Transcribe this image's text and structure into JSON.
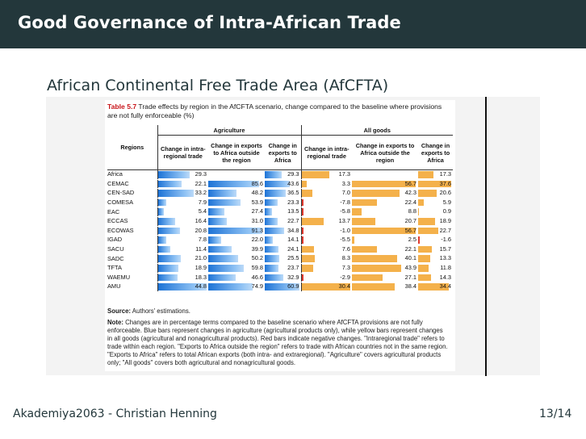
{
  "slide": {
    "title": "Good Governance of Intra-African Trade",
    "subtitle": "African Continental Free Trade Area (AfCFTA)",
    "footer_left": "Akademiya2063 - Christian Henning",
    "page_number": "13/14"
  },
  "table": {
    "caption": "Table 5.7 Trade effects by region in the AfCFTA scenario, change compared to the baseline where provisions are not fully enforceable (%)",
    "caption_prefix": "Table 5.7",
    "caption_text": "Trade effects by region in the AfCFTA scenario, change compared to the baseline where provisions are not fully enforceable (%)",
    "group_headers": [
      "Agriculture",
      "All goods"
    ],
    "regions_header": "Regions",
    "column_headers": [
      "Change in intra-regional trade",
      "Change in exports to Africa outside the region",
      "Change in exports to Africa",
      "Change in intra-regional trade",
      "Change in exports to Africa outside the region",
      "Change in exports to Africa"
    ],
    "rows": [
      {
        "region": "Africa",
        "values": [
          "29.3",
          "",
          "29.3",
          "17.3",
          "",
          "17.3"
        ]
      },
      {
        "region": "CEMAC",
        "values": [
          "22.1",
          "85.6",
          "43.6",
          "3.3",
          "56.7",
          "37.6"
        ]
      },
      {
        "region": "CEN-SAD",
        "values": [
          "33.2",
          "48.2",
          "36.5",
          "7.0",
          "42.3",
          "20.6"
        ]
      },
      {
        "region": "COMESA",
        "values": [
          "7.9",
          "53.9",
          "23.3",
          "-7.8",
          "22.4",
          "5.9"
        ]
      },
      {
        "region": "EAC",
        "values": [
          "5.4",
          "27.4",
          "13.5",
          "-5.8",
          "8.8",
          "0.9"
        ]
      },
      {
        "region": "ECCAS",
        "values": [
          "16.4",
          "31.0",
          "22.7",
          "13.7",
          "20.7",
          "18.9"
        ]
      },
      {
        "region": "ECOWAS",
        "values": [
          "20.8",
          "91.3",
          "34.8",
          "-1.0",
          "56.7",
          "22.7"
        ]
      },
      {
        "region": "IGAD",
        "values": [
          "7.8",
          "22.0",
          "14.1",
          "-5.5",
          "2.5",
          "-1.6"
        ]
      },
      {
        "region": "SACU",
        "values": [
          "11.4",
          "39.9",
          "24.1",
          "7.6",
          "22.1",
          "15.7"
        ]
      },
      {
        "region": "SADC",
        "values": [
          "21.0",
          "50.2",
          "25.5",
          "8.3",
          "40.1",
          "13.3"
        ]
      },
      {
        "region": "TFTA",
        "values": [
          "18.9",
          "59.8",
          "23.7",
          "7.3",
          "43.9",
          "11.8"
        ]
      },
      {
        "region": "WAEMU",
        "values": [
          "18.3",
          "46.6",
          "32.9",
          "-2.9",
          "27.1",
          "14.3"
        ]
      },
      {
        "region": "AMU",
        "values": [
          "44.8",
          "74.9",
          "60.9",
          "30.4",
          "38.4",
          "34.4"
        ]
      }
    ],
    "source_label": "Source:",
    "source_text": "Authors' estimations.",
    "note_label": "Note:",
    "note_text": "Changes are in percentage terms compared to the baseline scenario where AfCFTA provisions are not fully enforceable. Blue bars represent changes in agriculture (agricultural products only), while yellow bars represent changes in all goods (agricultural and nonagricultural products). Red bars indicate negative changes. \"Intraregional trade\" refers to trade within each region. \"Exports to Africa outside the region\" refers to trade with African countries not in the same region. \"Exports to Africa\" refers to total African exports (both intra- and extraregional). \"Agriculture\" covers agricultural products only; \"All goods\" covers both agricultural and nonagricultural goods."
  },
  "colors": {
    "header_bg": "#23373b",
    "agri_bar": "#1d73d6",
    "goods_bar": "#f4b14b",
    "negative_bar": "#e03a2f"
  }
}
